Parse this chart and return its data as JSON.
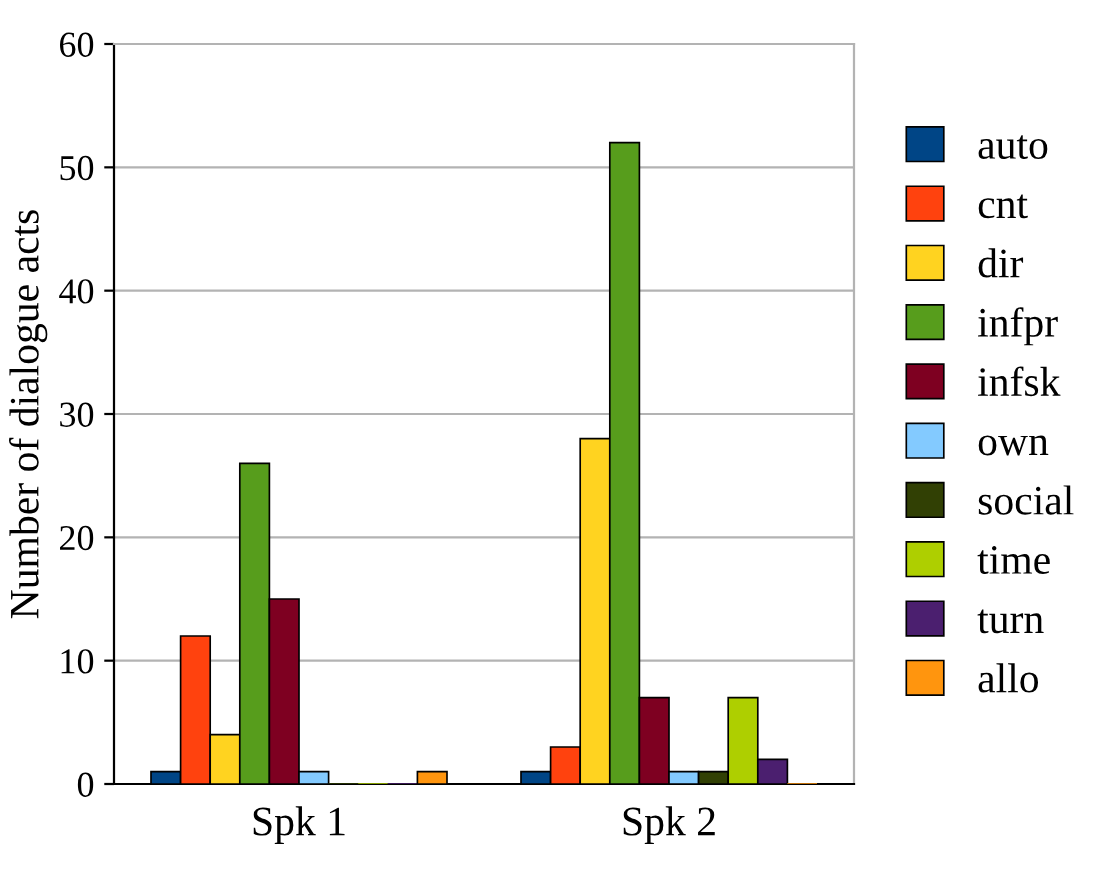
{
  "chart_data": {
    "type": "bar",
    "ylabel": "Number of dialogue acts",
    "categories": [
      "Spk 1",
      "Spk 2"
    ],
    "series": [
      {
        "name": "auto",
        "color": "#004586",
        "values": [
          1,
          1
        ]
      },
      {
        "name": "cnt",
        "color": "#ff420e",
        "values": [
          12,
          3
        ]
      },
      {
        "name": "dir",
        "color": "#ffd320",
        "values": [
          4,
          28
        ]
      },
      {
        "name": "infpr",
        "color": "#579d1c",
        "values": [
          26,
          52
        ]
      },
      {
        "name": "infsk",
        "color": "#7e0021",
        "values": [
          15,
          7
        ]
      },
      {
        "name": "own",
        "color": "#83caff",
        "values": [
          1,
          1
        ]
      },
      {
        "name": "social",
        "color": "#314004",
        "values": [
          0,
          1
        ]
      },
      {
        "name": "time",
        "color": "#aecf00",
        "values": [
          0,
          7
        ]
      },
      {
        "name": "turn",
        "color": "#4b1f6f",
        "values": [
          0,
          2
        ]
      },
      {
        "name": "allo",
        "color": "#ff950e",
        "values": [
          1,
          0
        ]
      }
    ],
    "ylim": [
      0,
      60
    ],
    "yticks": [
      0,
      10,
      20,
      30,
      40,
      50,
      60
    ],
    "grid": "y",
    "legend": "right"
  }
}
